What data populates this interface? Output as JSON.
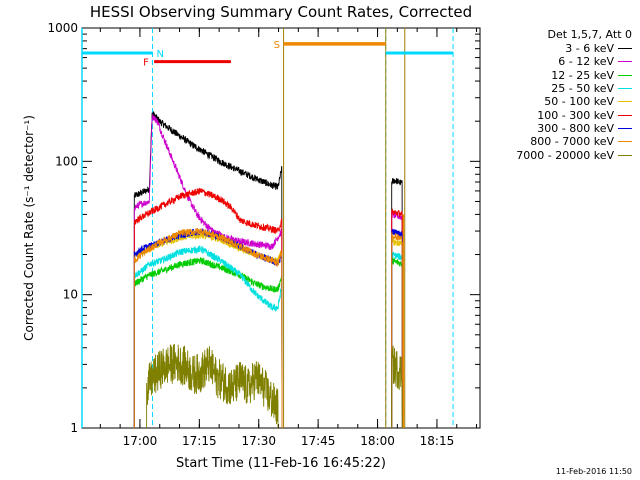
{
  "chart_data": {
    "type": "line",
    "title": "HESSI Observing Summary Count Rates, Corrected",
    "xlabel": "Start Time (11-Feb-16 16:45:22)",
    "ylabel": "Corrected Count Rate (s⁻¹ detector⁻¹)",
    "yscale": "log",
    "ylim": [
      1,
      1000
    ],
    "yticks": [
      "1",
      "10",
      "100",
      "1000"
    ],
    "x_range_minutes": [
      0,
      100.5
    ],
    "xticks": [
      {
        "minute": 14.63,
        "label": "17:00"
      },
      {
        "minute": 29.63,
        "label": "17:15"
      },
      {
        "minute": 44.63,
        "label": "17:30"
      },
      {
        "minute": 59.63,
        "label": "17:45"
      },
      {
        "minute": 74.63,
        "label": "18:00"
      },
      {
        "minute": 89.63,
        "label": "18:15"
      }
    ],
    "legend_header": "Det 1,5,7, Att 0",
    "legend_position": "right",
    "grid": false,
    "series": [
      {
        "name": "3 - 6 keV",
        "color": "#000000",
        "segments": [
          [
            [
              13.2,
              55
            ],
            [
              15,
              58
            ],
            [
              17,
              62
            ],
            [
              17.7,
              230
            ],
            [
              20,
              195
            ],
            [
              24,
              160
            ],
            [
              28,
              132
            ],
            [
              32,
              112
            ],
            [
              36,
              96
            ],
            [
              40,
              84
            ],
            [
              44,
              74
            ],
            [
              48,
              66
            ],
            [
              49.5,
              64
            ],
            [
              50.5,
              90
            ]
          ],
          [
            [
              78.2,
              70
            ],
            [
              79,
              72
            ],
            [
              80,
              70
            ],
            [
              80.9,
              68
            ]
          ]
        ]
      },
      {
        "name": "6 - 12 keV",
        "color": "#cc00cc",
        "segments": [
          [
            [
              13.2,
              45
            ],
            [
              15,
              48
            ],
            [
              17,
              50
            ],
            [
              17.7,
              220
            ],
            [
              19,
              200
            ],
            [
              21,
              140
            ],
            [
              23,
              100
            ],
            [
              25,
              72
            ],
            [
              27,
              52
            ],
            [
              29,
              40
            ],
            [
              31,
              34
            ],
            [
              33,
              30
            ],
            [
              36,
              27
            ],
            [
              40,
              25
            ],
            [
              44,
              24
            ],
            [
              48,
              23
            ],
            [
              50.5,
              30
            ]
          ],
          [
            [
              78.2,
              40
            ],
            [
              80.9,
              38
            ]
          ]
        ]
      },
      {
        "name": "12 - 25 keV",
        "color": "#00cc00",
        "segments": [
          [
            [
              13.2,
              12
            ],
            [
              15,
              13
            ],
            [
              17,
              14
            ],
            [
              20,
              15
            ],
            [
              25,
              17
            ],
            [
              30,
              18
            ],
            [
              35,
              16
            ],
            [
              40,
              14
            ],
            [
              44,
              12
            ],
            [
              48,
              11
            ],
            [
              49.5,
              11
            ],
            [
              50.5,
              14
            ]
          ],
          [
            [
              78.2,
              18
            ],
            [
              80.9,
              17
            ]
          ]
        ]
      },
      {
        "name": "25 - 50 keV",
        "color": "#00e0e0",
        "segments": [
          [
            [
              13.2,
              14
            ],
            [
              15,
              15
            ],
            [
              17,
              17
            ],
            [
              20,
              18
            ],
            [
              25,
              21
            ],
            [
              30,
              22
            ],
            [
              35,
              18
            ],
            [
              40,
              14
            ],
            [
              44,
              10
            ],
            [
              48,
              8
            ],
            [
              49.5,
              8
            ],
            [
              50.5,
              12
            ]
          ],
          [
            [
              78.2,
              20
            ],
            [
              80.9,
              19
            ]
          ]
        ]
      },
      {
        "name": "50 - 100 keV",
        "color": "#e6c000",
        "segments": [
          [
            [
              13.2,
              20
            ],
            [
              15,
              21
            ],
            [
              17,
              22
            ],
            [
              20,
              24
            ],
            [
              25,
              27
            ],
            [
              30,
              28
            ],
            [
              35,
              26
            ],
            [
              40,
              22
            ],
            [
              44,
              20
            ],
            [
              48,
              18
            ],
            [
              49.5,
              18
            ],
            [
              50.5,
              22
            ]
          ],
          [
            [
              78.2,
              25
            ],
            [
              80.9,
              24
            ]
          ]
        ]
      },
      {
        "name": "100 - 300 keV",
        "color": "#ee0000",
        "segments": [
          [
            [
              13.2,
              35
            ],
            [
              15,
              38
            ],
            [
              17,
              41
            ],
            [
              20,
              46
            ],
            [
              25,
              55
            ],
            [
              30,
              60
            ],
            [
              35,
              52
            ],
            [
              38,
              44
            ],
            [
              40,
              36
            ],
            [
              44,
              33
            ],
            [
              48,
              31
            ],
            [
              49.5,
              30
            ],
            [
              50.5,
              36
            ]
          ],
          [
            [
              78.2,
              42
            ],
            [
              80.9,
              40
            ]
          ]
        ]
      },
      {
        "name": "300 - 800 keV",
        "color": "#0000dd",
        "segments": [
          [
            [
              13.2,
              20
            ],
            [
              15,
              22
            ],
            [
              17,
              23
            ],
            [
              20,
              25
            ],
            [
              25,
              28
            ],
            [
              30,
              30
            ],
            [
              35,
              27
            ],
            [
              40,
              23
            ],
            [
              44,
              20
            ],
            [
              48,
              18
            ],
            [
              49.5,
              17
            ],
            [
              50.5,
              20
            ]
          ],
          [
            [
              78.2,
              30
            ],
            [
              80.9,
              28
            ]
          ]
        ]
      },
      {
        "name": "800 - 7000 keV",
        "color": "#ee8800",
        "segments": [
          [
            [
              13.2,
              18
            ],
            [
              15,
              20
            ],
            [
              17,
              22
            ],
            [
              20,
              25
            ],
            [
              25,
              29
            ],
            [
              30,
              30
            ],
            [
              35,
              27
            ],
            [
              40,
              23
            ],
            [
              44,
              20
            ],
            [
              48,
              18
            ],
            [
              49.5,
              17
            ],
            [
              50.5,
              22
            ]
          ],
          [
            [
              78.2,
              28
            ],
            [
              80.9,
              26
            ]
          ]
        ]
      },
      {
        "name": "7000 - 20000 keV",
        "color": "#808000",
        "segments": [
          [
            [
              16.3,
              2
            ],
            [
              18,
              2.4
            ],
            [
              20,
              2.8
            ],
            [
              22,
              3
            ],
            [
              24,
              3.1
            ],
            [
              26,
              2.9
            ],
            [
              28,
              2.5
            ],
            [
              30,
              2.6
            ],
            [
              32,
              3
            ],
            [
              34,
              2.4
            ],
            [
              36,
              2.2
            ],
            [
              38,
              2
            ],
            [
              40,
              2.3
            ],
            [
              42,
              2
            ],
            [
              44,
              2.4
            ],
            [
              46,
              2
            ],
            [
              48,
              1.6
            ],
            [
              49.5,
              1.4
            ]
          ],
          [
            [
              78.2,
              3
            ],
            [
              80.9,
              2.6
            ]
          ]
        ]
      }
    ],
    "attenuator_level": 650,
    "attenuator_segments": [
      [
        0,
        17.8
      ],
      [
        76.7,
        93.7
      ]
    ],
    "saa_level": 760,
    "saa_segment": [
      50.9,
      76.7
    ],
    "flare_level": 560,
    "flare_segment": [
      18.2,
      37.6
    ],
    "night_markers": [
      17.8,
      76.7,
      93.7
    ],
    "orbit_lines": [
      50.9,
      76.7,
      81.5
    ],
    "data_start_minute": 13.2,
    "data_end_minute": 50.5,
    "data2_start_minute": 78.2,
    "data2_end_minute": 80.9,
    "labels": {
      "N": "N",
      "F": "F",
      "S": "S"
    }
  },
  "timestamp": "11-Feb-2016 11:50"
}
